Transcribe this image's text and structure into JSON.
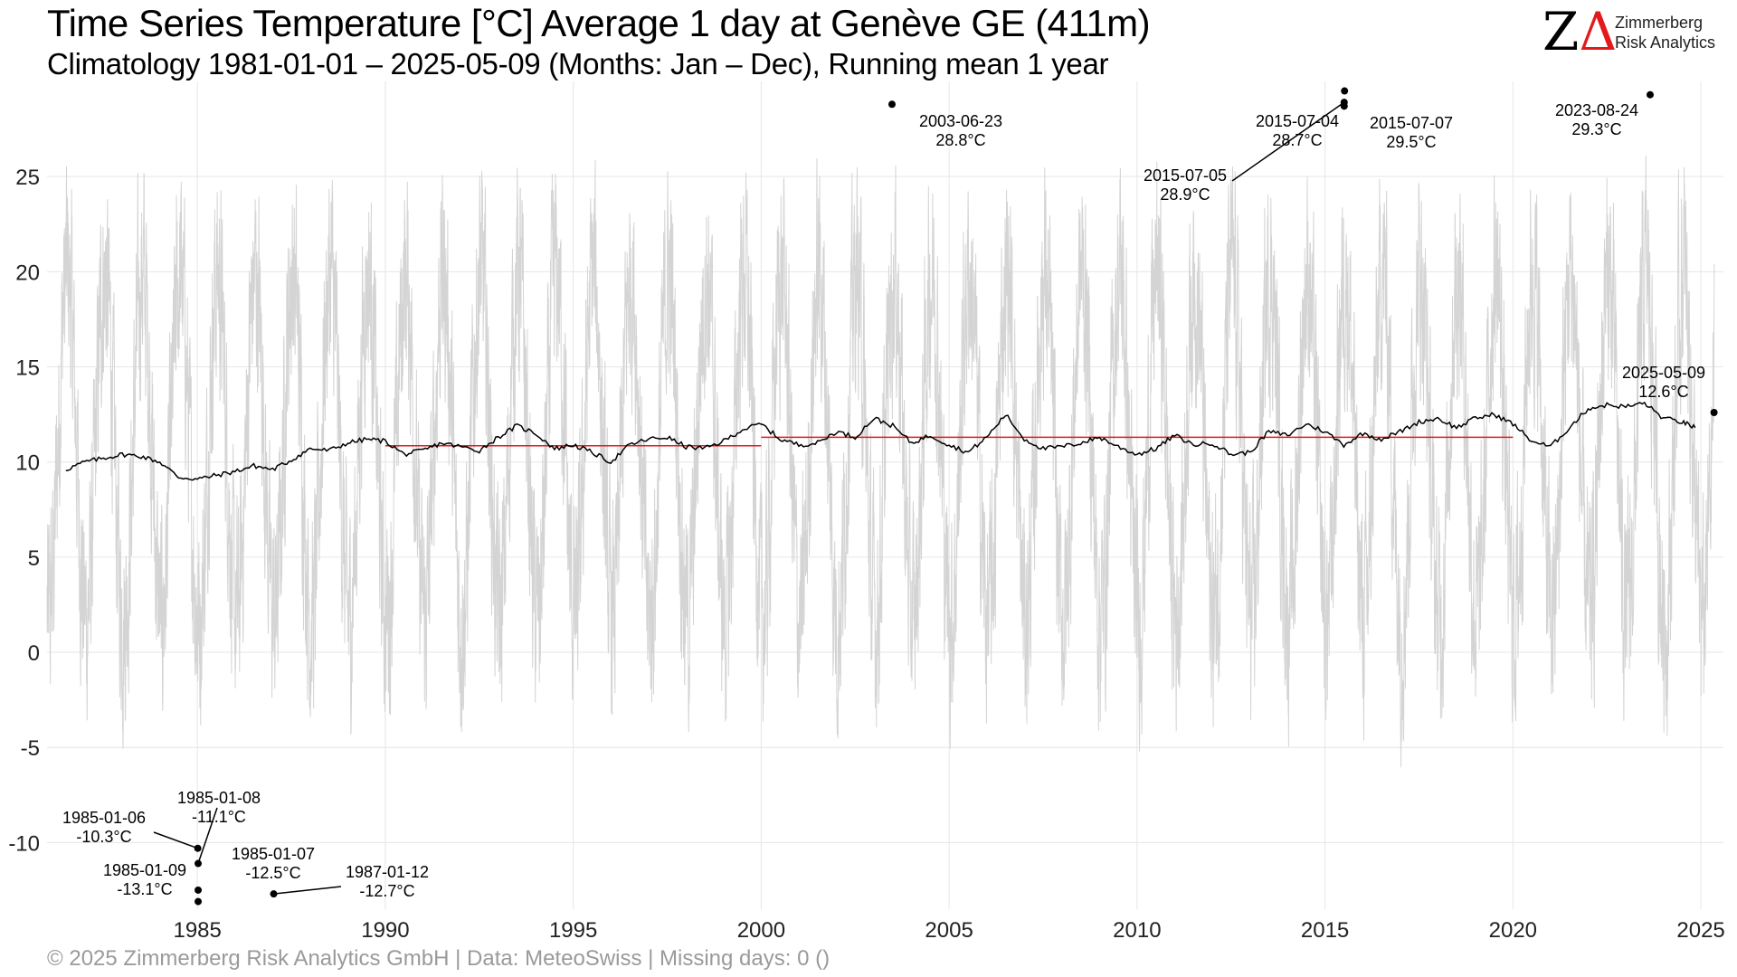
{
  "header": {
    "title": "Time Series Temperature [°C] Average 1 day at Genève  GE (411m)",
    "subtitle": "Climatology 1981-01-01 – 2025-05-09 (Months: Jan – Dec), Running mean 1 year"
  },
  "logo": {
    "line1": "Zimmerberg",
    "line2": "Risk Analytics"
  },
  "footer": {
    "caption": "©  2025 Zimmerberg Risk Analytics GmbH | Data: MeteoSwiss | Missing days: 0 ()"
  },
  "colors": {
    "daily": "#d4d4d4",
    "running_mean": "#000000",
    "decade_mean": "#e31a1c",
    "grid": "#e6e6e6"
  },
  "chart_data": {
    "type": "line",
    "title": "Time Series Temperature [°C] Average 1 day at Genève  GE (411m)",
    "xlabel": "",
    "ylabel": "",
    "xlim": [
      1981.0,
      2025.6
    ],
    "ylim": [
      -13.5,
      30.0
    ],
    "x_ticks": [
      1985,
      1990,
      1995,
      2000,
      2005,
      2010,
      2015,
      2020,
      2025
    ],
    "y_ticks": [
      -10,
      -5,
      0,
      5,
      10,
      15,
      20,
      25
    ],
    "grid": true,
    "series": [
      {
        "name": "Daily average",
        "style": "thin grey line",
        "seasonal_mean": 10.8,
        "seasonal_amplitude": 9.0
      },
      {
        "name": "Running mean 1 year",
        "style": "black line",
        "x": [
          1981.5,
          1982.0,
          1982.5,
          1983.0,
          1983.5,
          1984.0,
          1984.5,
          1985.0,
          1985.5,
          1986.0,
          1986.5,
          1987.0,
          1987.5,
          1988.0,
          1988.5,
          1989.0,
          1989.5,
          1990.0,
          1990.5,
          1991.0,
          1991.5,
          1992.0,
          1992.5,
          1993.0,
          1993.5,
          1994.0,
          1994.5,
          1995.0,
          1995.5,
          1996.0,
          1996.5,
          1997.0,
          1997.5,
          1998.0,
          1998.5,
          1999.0,
          1999.5,
          2000.0,
          2000.5,
          2001.0,
          2001.5,
          2002.0,
          2002.5,
          2003.0,
          2003.5,
          2004.0,
          2004.5,
          2005.0,
          2005.5,
          2006.0,
          2006.5,
          2007.0,
          2007.5,
          2008.0,
          2008.5,
          2009.0,
          2009.5,
          2010.0,
          2010.5,
          2011.0,
          2011.5,
          2012.0,
          2012.5,
          2013.0,
          2013.5,
          2014.0,
          2014.5,
          2015.0,
          2015.5,
          2016.0,
          2016.5,
          2017.0,
          2017.5,
          2018.0,
          2018.5,
          2019.0,
          2019.5,
          2020.0,
          2020.5,
          2021.0,
          2021.5,
          2022.0,
          2022.5,
          2023.0,
          2023.5,
          2024.0,
          2024.5,
          2024.85
        ],
        "y": [
          9.6,
          10.0,
          10.2,
          10.4,
          10.3,
          10.0,
          9.2,
          9.1,
          9.3,
          9.5,
          9.8,
          9.6,
          10.1,
          10.7,
          10.6,
          11.0,
          11.2,
          11.1,
          10.4,
          10.6,
          11.0,
          10.8,
          10.6,
          11.3,
          11.9,
          11.5,
          10.7,
          10.9,
          10.5,
          10.0,
          10.9,
          11.2,
          11.3,
          10.8,
          10.7,
          11.1,
          11.7,
          12.0,
          11.2,
          10.9,
          11.0,
          11.6,
          11.3,
          12.3,
          11.9,
          11.0,
          11.4,
          10.9,
          10.5,
          11.3,
          12.5,
          11.2,
          10.7,
          10.8,
          11.0,
          11.3,
          10.8,
          10.4,
          10.7,
          11.4,
          10.9,
          11.0,
          10.4,
          10.5,
          11.6,
          11.4,
          12.0,
          11.6,
          10.9,
          11.5,
          11.2,
          11.6,
          12.1,
          12.3,
          11.8,
          12.3,
          12.5,
          12.0,
          11.1,
          10.8,
          11.8,
          12.8,
          13.0,
          12.9,
          13.1,
          12.3,
          12.1,
          11.8
        ]
      },
      {
        "name": "Decade mean",
        "style": "red line",
        "segments": [
          {
            "x": [
              1990.0,
              2000.0
            ],
            "y": 10.85
          },
          {
            "x": [
              2000.0,
              2020.0
            ],
            "y": 11.3
          }
        ]
      }
    ],
    "annotations": [
      {
        "date": "2003-06-23",
        "value_label": "28.8°C",
        "x": 2003.48,
        "y": 28.8
      },
      {
        "date": "2015-07-04",
        "value_label": "28.7°C",
        "x": 2015.51,
        "y": 28.7
      },
      {
        "date": "2015-07-07",
        "value_label": "29.5°C",
        "x": 2015.52,
        "y": 29.5
      },
      {
        "date": "2015-07-05",
        "value_label": "28.9°C",
        "x": 2015.51,
        "y": 28.9
      },
      {
        "date": "2023-08-24",
        "value_label": "29.3°C",
        "x": 2023.65,
        "y": 29.3
      },
      {
        "date": "2025-05-09",
        "value_label": "12.6°C",
        "x": 2025.35,
        "y": 12.6
      },
      {
        "date": "1985-01-06",
        "value_label": "-10.3°C",
        "x": 1985.01,
        "y": -10.3
      },
      {
        "date": "1985-01-08",
        "value_label": "-11.1°C",
        "x": 1985.02,
        "y": -11.1
      },
      {
        "date": "1985-01-09",
        "value_label": "-13.1°C",
        "x": 1985.02,
        "y": -13.1
      },
      {
        "date": "1985-01-07",
        "value_label": "-12.5°C",
        "x": 1985.02,
        "y": -12.5
      },
      {
        "date": "1987-01-12",
        "value_label": "-12.7°C",
        "x": 1987.03,
        "y": -12.7
      }
    ]
  }
}
